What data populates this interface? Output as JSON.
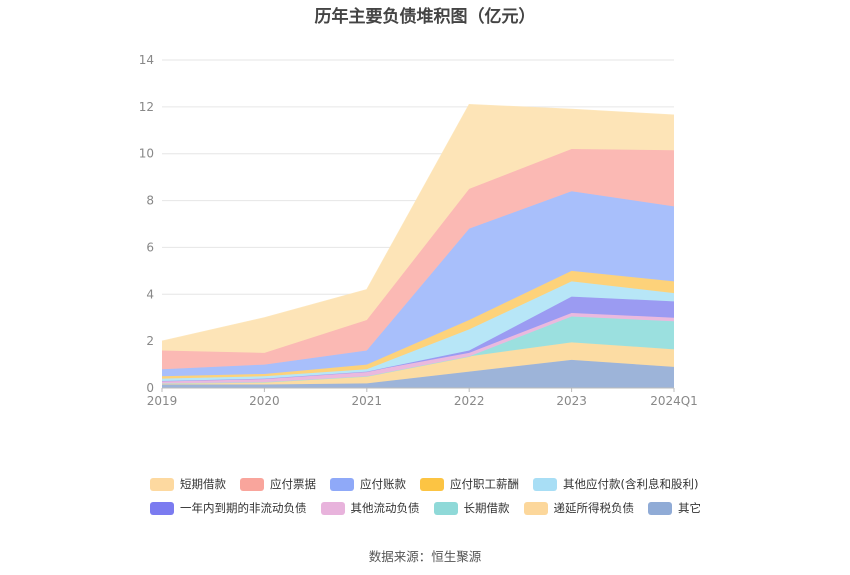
{
  "chart_data": {
    "type": "area",
    "stacked": true,
    "title": "历年主要负债堆积图（亿元）",
    "categories": [
      "2019",
      "2020",
      "2021",
      "2022",
      "2023",
      "2024Q1"
    ],
    "ylim": [
      0,
      14
    ],
    "yticks": [
      0,
      2,
      4,
      6,
      8,
      10,
      12,
      14
    ],
    "grid": true,
    "legend_position": "bottom",
    "series": [
      {
        "name": "其它",
        "color": "#9db4d9",
        "values": [
          0.15,
          0.15,
          0.2,
          0.7,
          1.2,
          0.9
        ]
      },
      {
        "name": "递延所得税负债",
        "color": "#fcdca3",
        "values": [
          0.05,
          0.1,
          0.3,
          0.65,
          0.75,
          0.75
        ]
      },
      {
        "name": "长期借款",
        "color": "#9be0df",
        "values": [
          0.0,
          0.0,
          0.0,
          0.0,
          1.1,
          1.2
        ]
      },
      {
        "name": "其他流动负债",
        "color": "#eab9de",
        "values": [
          0.1,
          0.15,
          0.2,
          0.15,
          0.15,
          0.15
        ]
      },
      {
        "name": "一年内到期的非流动负债",
        "color": "#9b9bf2",
        "values": [
          0.0,
          0.0,
          0.0,
          0.1,
          0.7,
          0.7
        ]
      },
      {
        "name": "其他应付款(含利息和股利)",
        "color": "#b7e6f7",
        "values": [
          0.1,
          0.1,
          0.1,
          0.9,
          0.65,
          0.35
        ]
      },
      {
        "name": "应付职工薪酬",
        "color": "#fdd27a",
        "values": [
          0.1,
          0.1,
          0.2,
          0.4,
          0.45,
          0.5
        ]
      },
      {
        "name": "应付账款",
        "color": "#a8bffb",
        "values": [
          0.3,
          0.4,
          0.6,
          3.9,
          3.4,
          3.2
        ]
      },
      {
        "name": "应付票据",
        "color": "#fbb9b4",
        "values": [
          0.8,
          0.5,
          1.3,
          1.7,
          1.8,
          2.4
        ]
      },
      {
        "name": "短期借款",
        "color": "#fde4b7",
        "values": [
          0.4,
          1.5,
          1.3,
          3.6,
          1.7,
          1.5
        ]
      }
    ],
    "legend_rows": [
      [
        {
          "label": "短期借款",
          "color": "#fdd9a0"
        },
        {
          "label": "应付票据",
          "color": "#f9a59c"
        },
        {
          "label": "应付账款",
          "color": "#8fa9f8"
        },
        {
          "label": "应付职工薪酬",
          "color": "#fcc443"
        },
        {
          "label": "其他应付款(含利息和股利)",
          "color": "#a8def5"
        }
      ],
      [
        {
          "label": "一年内到期的非流动负债",
          "color": "#7b7bf0"
        },
        {
          "label": "其他流动负债",
          "color": "#e8b3dc"
        },
        {
          "label": "长期借款",
          "color": "#8fd9d8"
        },
        {
          "label": "递延所得税负债",
          "color": "#fcd79b"
        },
        {
          "label": "其它",
          "color": "#90abd6"
        }
      ]
    ]
  },
  "source_text": "数据来源：恒生聚源"
}
